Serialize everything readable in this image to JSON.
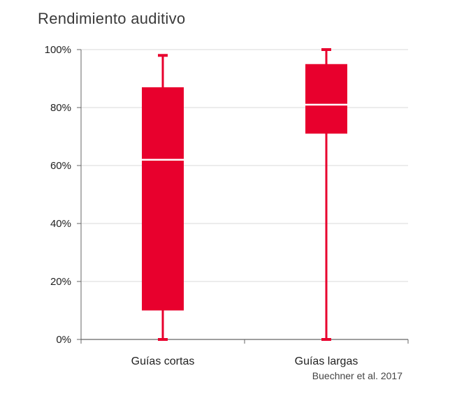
{
  "colors": {
    "box": "#e8002d",
    "median": "#ffffff",
    "grid": "#d9d9d9",
    "axis": "#666666"
  },
  "chart_data": {
    "type": "boxplot",
    "title": "Rendimiento auditivo",
    "source": "Buechner et al. 2017",
    "ylim": [
      0,
      100
    ],
    "y_ticks": [
      0,
      20,
      40,
      60,
      80,
      100
    ],
    "y_tick_labels": [
      "0%",
      "20%",
      "40%",
      "60%",
      "80%",
      "100%"
    ],
    "grid": true,
    "categories": [
      "Guías cortas",
      "Guías largas"
    ],
    "boxes": [
      {
        "category": "Guías cortas",
        "min": 0,
        "q1": 10,
        "median": 62,
        "q3": 87,
        "max": 98
      },
      {
        "category": "Guías largas",
        "min": 0,
        "q1": 71,
        "median": 81,
        "q3": 95,
        "max": 100
      }
    ]
  }
}
